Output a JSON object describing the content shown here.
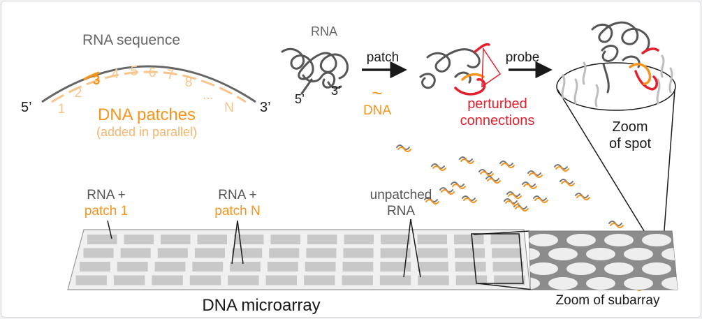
{
  "colors": {
    "gray": "#666666",
    "dark": "#1a1a1a",
    "orange": "#f7941d",
    "light_orange": "#f9c48a",
    "red": "#e4202c",
    "array_cell": "#c8c8c8",
    "array_bg": "#efefef"
  },
  "rna_sequence_panel": {
    "title": "RNA sequence",
    "end_5": "5’",
    "end_3": "3’",
    "patch_numbers": [
      "1",
      "2",
      "3",
      "4",
      "5",
      "6",
      "7",
      "8",
      "...",
      "N"
    ],
    "patches_label": "DNA patches",
    "patches_sublabel": "(added in parallel)"
  },
  "process_panel": {
    "rna_label": "RNA",
    "end_5": "5’",
    "end_3": "3’",
    "patch_step": "patch",
    "dna_symbol": "~",
    "dna_label": "DNA",
    "perturbed_line1": "perturbed",
    "perturbed_line2": "connections",
    "probe_step": "probe",
    "zoom_spot_line1": "Zoom",
    "zoom_spot_line2": "of spot"
  },
  "microarray_panel": {
    "label_1_line1": "RNA +",
    "label_1_line2": "patch 1",
    "label_n_line1": "RNA +",
    "label_n_line2": "patch N",
    "unpatched_line1": "unpatched",
    "unpatched_line2": "RNA",
    "array_title": "DNA microarray",
    "subarray_title": "Zoom of subarray"
  }
}
